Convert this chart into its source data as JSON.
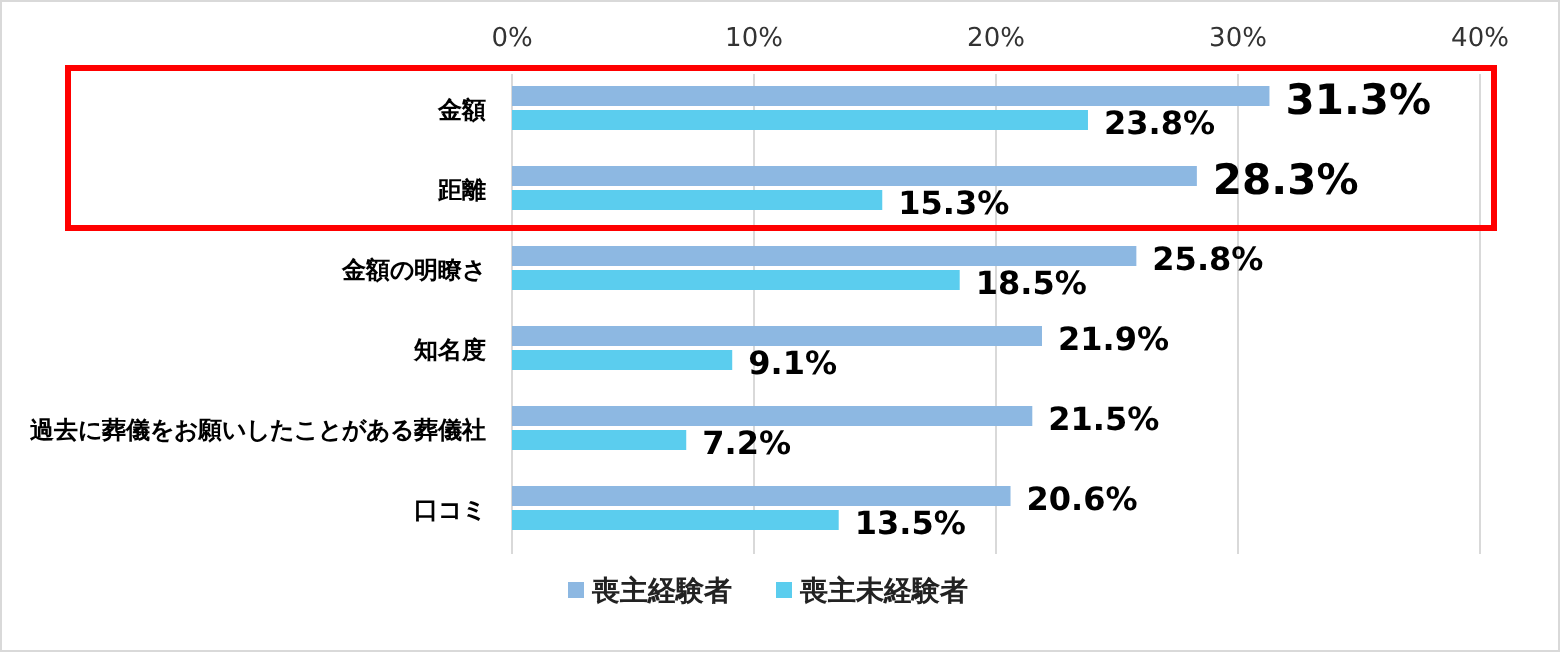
{
  "chart_data": {
    "type": "bar",
    "orientation": "horizontal",
    "categories": [
      "金額",
      "距離",
      "金額の明瞭さ",
      "知名度",
      "過去に葬儀をお願いしたことがある葬儀社",
      "口コミ"
    ],
    "series": [
      {
        "name": "喪主経験者",
        "color": "#8db8e2",
        "values": [
          31.3,
          28.3,
          25.8,
          21.9,
          21.5,
          20.6
        ],
        "value_labels": [
          "31.3%",
          "28.3%",
          "25.8%",
          "21.9%",
          "21.5%",
          "20.6%"
        ]
      },
      {
        "name": "喪主未経験者",
        "color": "#5bcdee",
        "values": [
          23.8,
          15.3,
          18.5,
          9.1,
          7.2,
          13.5
        ],
        "value_labels": [
          "23.8%",
          "15.3%",
          "18.5%",
          "9.1%",
          "7.2%",
          "13.5%"
        ]
      }
    ],
    "xlim": [
      0,
      40
    ],
    "xticks": [
      {
        "value": 0,
        "label": "0%"
      },
      {
        "value": 10,
        "label": "10%"
      },
      {
        "value": 20,
        "label": "20%"
      },
      {
        "value": 30,
        "label": "30%"
      },
      {
        "value": 40,
        "label": "40%"
      }
    ],
    "grid": "x",
    "legend": "bottom"
  }
}
